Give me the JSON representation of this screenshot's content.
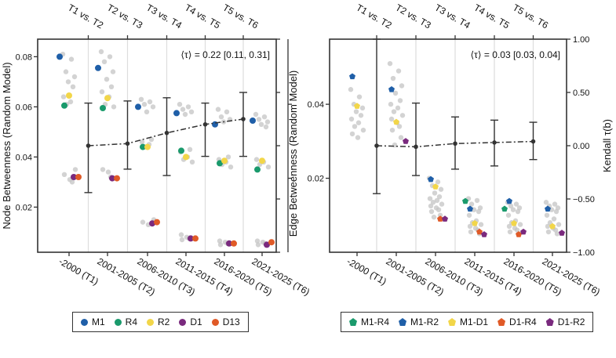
{
  "chart_data": [
    {
      "type": "scatter",
      "ylabel": "Node Betweenness (Random Model)",
      "ylim": [
        0.002,
        0.087
      ],
      "yticks": [
        0.02,
        0.04,
        0.06,
        0.08
      ],
      "ytick_labels": [
        "0.02",
        "0.04",
        "0.06",
        "0.08"
      ],
      "categories": [
        "-2000 (T1)",
        "2001-2005 (T2)",
        "2006-2010 (T3)",
        "2011-2015 (T4)",
        "2016-2020 (T5)",
        "2021-2025 (T6)"
      ],
      "top_labels": [
        "T1 vs. T2",
        "T2 vs. T3",
        "T3 vs. T4",
        "T4 vs. T5",
        "T5 vs. T6"
      ],
      "annotation": "⟨τ⟩ = 0.22 [0.11, 0.31]",
      "legend_position": "bottom",
      "series": [
        {
          "name": "M1",
          "color": "#1f5fa8",
          "marker": "circle",
          "values": [
            0.08,
            0.0755,
            0.06,
            0.0575,
            0.053,
            0.0545
          ]
        },
        {
          "name": "R4",
          "color": "#1a9a6c",
          "marker": "circle",
          "values": [
            0.0605,
            0.0595,
            0.044,
            0.0425,
            0.0375,
            0.035
          ]
        },
        {
          "name": "R2",
          "color": "#f2d649",
          "marker": "circle",
          "values": [
            0.0645,
            0.0635,
            0.044,
            0.04,
            0.0385,
            0.0385
          ]
        },
        {
          "name": "D1",
          "color": "#7a2a7e",
          "marker": "circle",
          "values": [
            0.032,
            0.0315,
            0.0135,
            0.0075,
            0.0055,
            0.005
          ]
        },
        {
          "name": "D13",
          "color": "#e05a27",
          "marker": "circle",
          "values": [
            0.032,
            0.0315,
            0.014,
            0.0075,
            0.0055,
            0.006
          ]
        }
      ],
      "background_points": [
        [
          0.081,
          0.079,
          0.074,
          0.072,
          0.07,
          0.068,
          0.064,
          0.062,
          0.061,
          0.035,
          0.033,
          0.031,
          0.03
        ],
        [
          0.082,
          0.08,
          0.078,
          0.074,
          0.071,
          0.068,
          0.066,
          0.064,
          0.061,
          0.06,
          0.035,
          0.034,
          0.032
        ],
        [
          0.063,
          0.062,
          0.061,
          0.06,
          0.058,
          0.047,
          0.046,
          0.045,
          0.044,
          0.015,
          0.014,
          0.013
        ],
        [
          0.061,
          0.06,
          0.059,
          0.058,
          0.057,
          0.043,
          0.042,
          0.04,
          0.039,
          0.038,
          0.009,
          0.008,
          0.0075,
          0.007
        ],
        [
          0.059,
          0.058,
          0.056,
          0.055,
          0.054,
          0.04,
          0.039,
          0.038,
          0.037,
          0.036,
          0.0065,
          0.006,
          0.0055,
          0.005
        ],
        [
          0.057,
          0.056,
          0.055,
          0.054,
          0.053,
          0.052,
          0.039,
          0.038,
          0.037,
          0.036,
          0.0065,
          0.006,
          0.0055,
          0.005
        ]
      ],
      "secondary_axis": {
        "label": "Edge Betweenness (Random Model)",
        "ylim": [
          0.0,
          0.0576
        ],
        "ticks": [
          0.02,
          0.04
        ],
        "tick_labels": [
          "0.02",
          "0.04"
        ]
      },
      "tau_axis": {
        "ylim": [
          -1.0,
          1.0
        ],
        "ticks": [
          -1.0,
          -0.5,
          0.0,
          0.5,
          1.0
        ],
        "tick_labels": [
          "−1.00",
          "−0.50",
          "0.00",
          "0.50",
          "1.00"
        ]
      },
      "tau_series": {
        "values": [
          0.0,
          0.02,
          0.12,
          0.2,
          0.25
        ],
        "lower": [
          -0.44,
          -0.22,
          -0.28,
          -0.1,
          -0.1
        ],
        "upper": [
          0.4,
          0.42,
          0.45,
          0.4,
          0.5
        ]
      }
    },
    {
      "type": "scatter",
      "ylabel": "Edge Betweenness (Random Model)",
      "ylim": [
        0.0,
        0.0576
      ],
      "yticks": [
        0.02,
        0.04
      ],
      "ytick_labels": [
        "0.02",
        "0.04"
      ],
      "y2label": "Kendall τ(b)",
      "y2lim": [
        -1.0,
        1.0
      ],
      "y2ticks": [
        -1.0,
        -0.5,
        0.0,
        0.5,
        1.0
      ],
      "y2tick_labels": [
        "−1.00",
        "−0.50",
        "0.00",
        "0.50",
        "1.00"
      ],
      "categories": [
        "-2000 (T1)",
        "2001-2005 (T2)",
        "2006-2010 (T3)",
        "2011-2015 (T4)",
        "2016-2020 (T5)",
        "2021-2025 (T6)"
      ],
      "top_labels": [
        "T1 vs. T2",
        "T2 vs. T3",
        "T3 vs. T4",
        "T4 vs. T5",
        "T5 vs. T6"
      ],
      "annotation": "⟨τ⟩ = 0.03 [0.03, 0.04]",
      "legend_position": "bottom",
      "series": [
        {
          "name": "M1-R4",
          "color": "#1a9a6c",
          "marker": "pentagon",
          "values": [
            null,
            null,
            null,
            0.0138,
            0.0117,
            null
          ]
        },
        {
          "name": "M1-R2",
          "color": "#1f5fa8",
          "marker": "pentagon",
          "values": [
            0.0475,
            0.044,
            0.0197,
            0.0117,
            0.0138,
            0.0117
          ]
        },
        {
          "name": "M1-D1",
          "color": "#f2d649",
          "marker": "pentagon",
          "values": [
            0.0395,
            0.0352,
            0.0177,
            0.0078,
            0.0078,
            0.007
          ]
        },
        {
          "name": "D1-R4",
          "color": "#e05a27",
          "marker": "pentagon",
          "values": [
            null,
            null,
            0.009,
            0.0055,
            0.0048,
            null
          ]
        },
        {
          "name": "D1-R2",
          "color": "#7a2a7e",
          "marker": "pentagon",
          "values": [
            null,
            0.03,
            0.009,
            0.0048,
            0.0055,
            0.0052
          ]
        }
      ],
      "background_points": [
        [
          0.044,
          0.042,
          0.04,
          0.039,
          0.038,
          0.037,
          0.036,
          0.035,
          0.034,
          0.033,
          0.032,
          0.031
        ],
        [
          0.051,
          0.049,
          0.047,
          0.045,
          0.043,
          0.041,
          0.04,
          0.039,
          0.038,
          0.037,
          0.036,
          0.035,
          0.034,
          0.033,
          0.031,
          0.029
        ],
        [
          0.02,
          0.019,
          0.018,
          0.017,
          0.016,
          0.015,
          0.0145,
          0.014,
          0.0135,
          0.013,
          0.0125,
          0.012,
          0.0115,
          0.011,
          0.01,
          0.0095
        ],
        [
          0.0145,
          0.014,
          0.013,
          0.012,
          0.0115,
          0.011,
          0.01,
          0.0085,
          0.008,
          0.0075,
          0.007,
          0.0065,
          0.006,
          0.0055,
          0.005
        ],
        [
          0.0135,
          0.013,
          0.0125,
          0.012,
          0.0115,
          0.011,
          0.01,
          0.0085,
          0.008,
          0.0075,
          0.007,
          0.0065,
          0.006,
          0.0055,
          0.005
        ],
        [
          0.0135,
          0.013,
          0.0125,
          0.012,
          0.0115,
          0.011,
          0.01,
          0.009,
          0.008,
          0.0075,
          0.007,
          0.0065,
          0.006,
          0.0055,
          0.005
        ]
      ],
      "tau_series": {
        "values": [
          0.0,
          -0.01,
          0.02,
          0.03,
          0.04
        ],
        "lower": [
          -0.45,
          -0.28,
          -0.22,
          -0.19,
          -0.13
        ],
        "upper": [
          1.0,
          0.4,
          0.27,
          0.24,
          0.22
        ]
      }
    }
  ],
  "legends": [
    {
      "items": [
        {
          "label": "M1",
          "color": "#1f5fa8",
          "marker": "circle"
        },
        {
          "label": "R4",
          "color": "#1a9a6c",
          "marker": "circle"
        },
        {
          "label": "R2",
          "color": "#f2d649",
          "marker": "circle"
        },
        {
          "label": "D1",
          "color": "#7a2a7e",
          "marker": "circle"
        },
        {
          "label": "D13",
          "color": "#e05a27",
          "marker": "circle"
        }
      ]
    },
    {
      "items": [
        {
          "label": "M1-R4",
          "color": "#1a9a6c",
          "marker": "pentagon"
        },
        {
          "label": "M1-R2",
          "color": "#1f5fa8",
          "marker": "pentagon"
        },
        {
          "label": "M1-D1",
          "color": "#f2d649",
          "marker": "pentagon"
        },
        {
          "label": "D1-R4",
          "color": "#e05a27",
          "marker": "pentagon"
        },
        {
          "label": "D1-R2",
          "color": "#7a2a7e",
          "marker": "pentagon"
        }
      ]
    }
  ]
}
